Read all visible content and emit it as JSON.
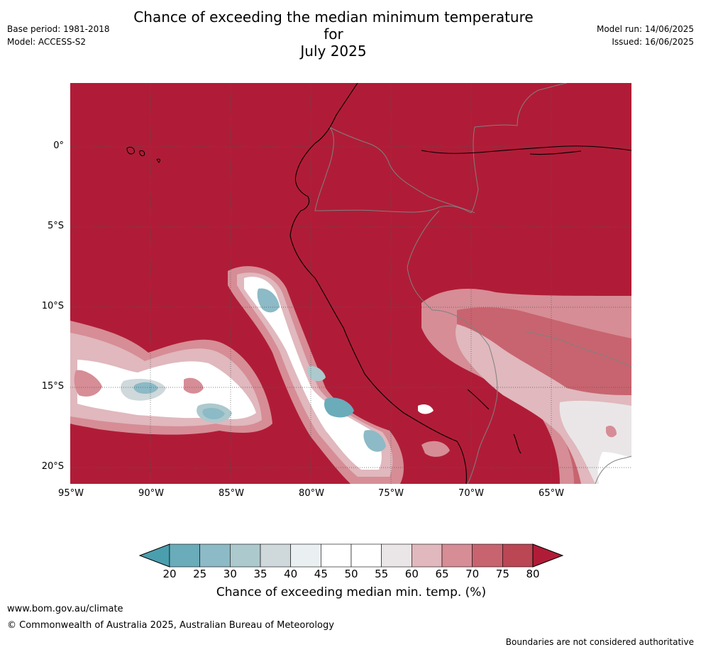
{
  "title_line1": "Chance of exceeding the median minimum temperature for",
  "title_line2": "July 2025",
  "base_period": "Base period: 1981-2018",
  "model": "Model: ACCESS-S2",
  "model_run": "Model run: 14/06/2025",
  "issued": "Issued: 16/06/2025",
  "lat_labels": [
    "0°",
    "5°S",
    "10°S",
    "15°S",
    "20°S"
  ],
  "lon_labels": [
    "95°W",
    "90°W",
    "85°W",
    "80°W",
    "75°W",
    "70°W",
    "65°W"
  ],
  "colorbar": {
    "ticks": [
      "20",
      "25",
      "30",
      "35",
      "40",
      "45",
      "50",
      "55",
      "60",
      "65",
      "70",
      "75",
      "80"
    ],
    "colors": [
      "#4a9eae",
      "#6aacba",
      "#8cbac6",
      "#acc9cd",
      "#cfd8db",
      "#eaeff1",
      "#ffffff",
      "#ffffff",
      "#eae6e7",
      "#e0b8bd",
      "#d68d96",
      "#c8646f",
      "#bb4654",
      "#b01c37"
    ],
    "label": "Chance of exceeding median min. temp. (%)"
  },
  "colors": {
    "high": "#b01c37",
    "border": "#808080",
    "coast": "#000000"
  },
  "footer": {
    "site": "www.bom.gov.au/climate",
    "copyright": "© Commonwealth of Australia 2025, Australian Bureau of Meteorology",
    "disclaimer": "Boundaries are not considered authoritative"
  }
}
